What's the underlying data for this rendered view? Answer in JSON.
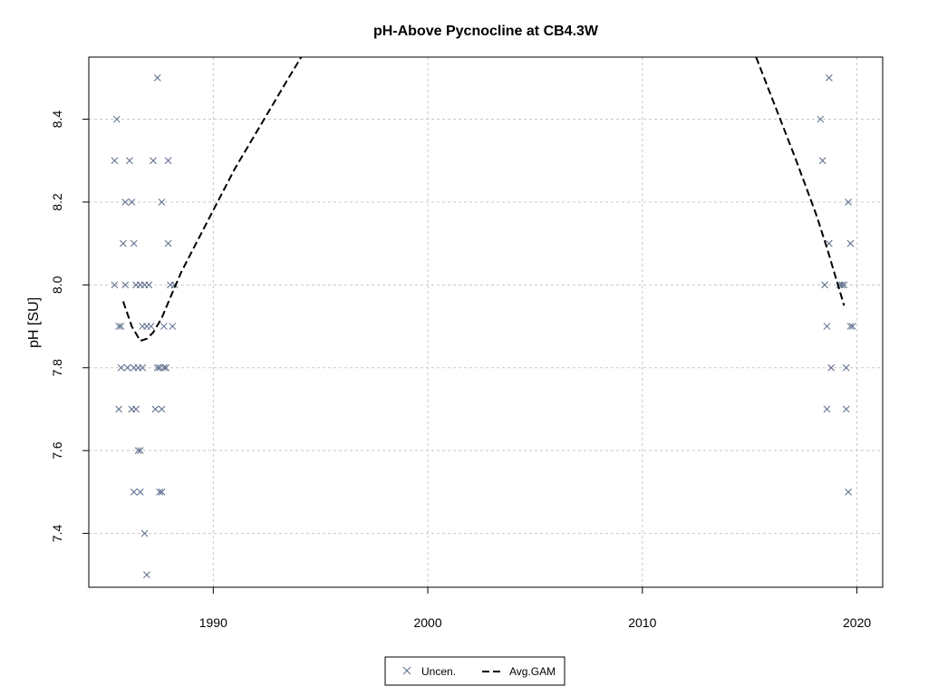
{
  "chart_data": {
    "type": "scatter",
    "title": "pH-Above Pycnocline at CB4.3W",
    "xlabel": "",
    "ylabel": "pH [SU]",
    "xlim": [
      1984.2,
      2021.2
    ],
    "ylim": [
      7.27,
      8.55
    ],
    "xticks": [
      1990,
      2000,
      2010,
      2020
    ],
    "yticks": [
      7.4,
      7.6,
      7.8,
      8.0,
      8.2,
      8.4
    ],
    "grid": true,
    "legend_position": "bottom-center",
    "colors": {
      "points": "#5a6a8a",
      "line": "#000000",
      "grid": "#c8c8c8"
    },
    "series": [
      {
        "name": "Uncen.",
        "kind": "points",
        "x": [
          1985.4,
          1985.5,
          1985.6,
          1985.4,
          1985.7,
          1985.6,
          1985.7,
          1985.8,
          1985.9,
          1985.9,
          1986.0,
          1986.1,
          1986.2,
          1986.3,
          1986.3,
          1986.4,
          1986.4,
          1986.5,
          1986.5,
          1986.6,
          1986.6,
          1986.7,
          1986.7,
          1986.8,
          1986.8,
          1986.9,
          1986.9,
          1987.0,
          1987.2,
          1987.3,
          1987.4,
          1987.4,
          1987.5,
          1987.5,
          1987.6,
          1987.6,
          1987.7,
          1987.7,
          1987.8,
          1987.9,
          1987.9,
          1988.0,
          1988.1,
          1988.2,
          1986.2,
          1986.3,
          1986.6,
          1987.1,
          1987.6,
          2018.3,
          2018.4,
          2018.5,
          2018.6,
          2018.6,
          2018.7,
          2018.7,
          2018.8,
          2019.2,
          2019.3,
          2019.4,
          2019.5,
          2019.5,
          2019.6,
          2019.7,
          2019.7,
          2019.8,
          2019.6
        ],
        "y": [
          8.3,
          8.4,
          7.7,
          8.0,
          7.9,
          7.9,
          7.8,
          8.1,
          8.0,
          8.2,
          7.8,
          8.3,
          8.2,
          8.1,
          7.5,
          7.7,
          8.0,
          7.6,
          7.8,
          8.0,
          7.5,
          7.9,
          7.8,
          8.0,
          7.4,
          7.3,
          7.9,
          8.0,
          8.3,
          7.7,
          8.5,
          7.8,
          7.8,
          7.5,
          7.7,
          8.2,
          7.8,
          7.9,
          7.8,
          8.3,
          8.1,
          8.0,
          7.9,
          8.0,
          7.7,
          7.8,
          7.6,
          7.9,
          7.5,
          8.4,
          8.3,
          8.0,
          7.7,
          7.9,
          8.1,
          8.5,
          7.8,
          8.0,
          8.0,
          8.0,
          7.7,
          7.8,
          8.2,
          8.1,
          7.9,
          7.9,
          7.5
        ]
      },
      {
        "name": "Avg.GAM",
        "kind": "line",
        "segments": [
          {
            "x": [
              1985.8,
              1986.2,
              1986.6,
              1986.9,
              1987.2,
              1987.6,
              1988.0,
              1988.5,
              1989.0,
              1989.6,
              1990.3,
              1991.0,
              1991.8,
              1992.6,
              1993.4,
              1994.1
            ],
            "y": [
              7.96,
              7.9,
              7.865,
              7.87,
              7.885,
              7.92,
              7.97,
              8.03,
              8.08,
              8.14,
              8.21,
              8.28,
              8.35,
              8.42,
              8.49,
              8.55
            ]
          },
          {
            "x": [
              2015.3,
              2015.9,
              2016.5,
              2017.1,
              2017.6,
              2018.1,
              2018.6,
              2019.0,
              2019.4
            ],
            "y": [
              8.55,
              8.47,
              8.39,
              8.31,
              8.24,
              8.17,
              8.09,
              8.02,
              7.95
            ]
          }
        ]
      }
    ]
  }
}
